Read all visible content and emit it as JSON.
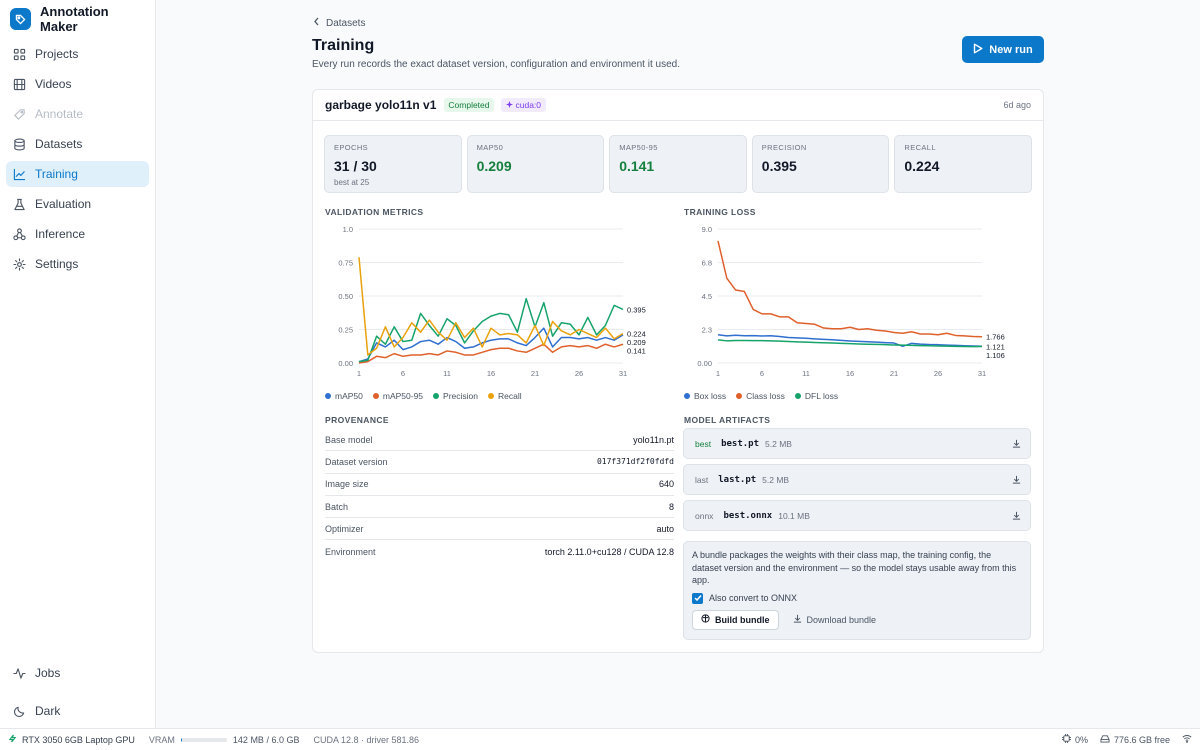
{
  "app": {
    "name": "Annotation Maker"
  },
  "sidebar": {
    "items": [
      {
        "label": "Projects",
        "icon": "grid-icon",
        "state": "normal"
      },
      {
        "label": "Videos",
        "icon": "film-icon",
        "state": "normal"
      },
      {
        "label": "Annotate",
        "icon": "tag-icon",
        "state": "disabled"
      },
      {
        "label": "Datasets",
        "icon": "database-icon",
        "state": "normal"
      },
      {
        "label": "Training",
        "icon": "chart-line-icon",
        "state": "active"
      },
      {
        "label": "Evaluation",
        "icon": "flask-icon",
        "state": "normal"
      },
      {
        "label": "Inference",
        "icon": "network-icon",
        "state": "normal"
      },
      {
        "label": "Settings",
        "icon": "gear-icon",
        "state": "normal"
      }
    ],
    "bottom": [
      {
        "label": "Jobs",
        "icon": "activity-icon"
      },
      {
        "label": "Dark",
        "icon": "moon-icon"
      }
    ]
  },
  "header": {
    "breadcrumb": "Datasets",
    "title": "Training",
    "subtitle": "Every run records the exact dataset version, configuration and environment it used.",
    "new_run": "New run"
  },
  "run": {
    "name": "garbage yolo11n v1",
    "status": "Completed",
    "device": "cuda:0",
    "age": "6d ago",
    "stats": [
      {
        "label": "EPOCHS",
        "value": "31 / 30",
        "sub": "best at 25",
        "accent": false
      },
      {
        "label": "MAP50",
        "value": "0.209",
        "sub": "",
        "accent": true
      },
      {
        "label": "MAP50-95",
        "value": "0.141",
        "sub": "",
        "accent": true
      },
      {
        "label": "PRECISION",
        "value": "0.395",
        "sub": "",
        "accent": false
      },
      {
        "label": "RECALL",
        "value": "0.224",
        "sub": "",
        "accent": false
      }
    ]
  },
  "sections": {
    "validation": "VALIDATION METRICS",
    "training_loss": "TRAINING LOSS",
    "provenance": "PROVENANCE",
    "artifacts": "MODEL ARTIFACTS"
  },
  "chart_data": [
    {
      "type": "line",
      "title": "VALIDATION METRICS",
      "xlim": [
        1,
        31
      ],
      "x_ticks": [
        "1",
        "6",
        "11",
        "16",
        "21",
        "26",
        "31"
      ],
      "ylim": [
        0,
        1
      ],
      "y_ticks": [
        "0.00",
        "0.25",
        "0.50",
        "0.75",
        "1.0"
      ],
      "grid": true,
      "legend": "bottom",
      "end_labels": [
        "0.395",
        "0.224",
        "0.209",
        "0.141"
      ],
      "series": [
        {
          "name": "mAP50",
          "color": "#2f6fcf",
          "values": [
            0.01,
            0.03,
            0.15,
            0.12,
            0.17,
            0.1,
            0.12,
            0.16,
            0.17,
            0.14,
            0.19,
            0.16,
            0.11,
            0.12,
            0.15,
            0.17,
            0.18,
            0.18,
            0.15,
            0.13,
            0.19,
            0.26,
            0.12,
            0.19,
            0.19,
            0.18,
            0.19,
            0.17,
            0.19,
            0.17,
            0.21
          ]
        },
        {
          "name": "mAP50-95",
          "color": "#e0602b",
          "values": [
            0.0,
            0.01,
            0.05,
            0.04,
            0.07,
            0.05,
            0.06,
            0.06,
            0.07,
            0.06,
            0.09,
            0.08,
            0.06,
            0.06,
            0.08,
            0.1,
            0.11,
            0.11,
            0.09,
            0.08,
            0.11,
            0.14,
            0.08,
            0.12,
            0.13,
            0.12,
            0.13,
            0.11,
            0.14,
            0.12,
            0.14
          ]
        },
        {
          "name": "Precision",
          "color": "#16a36b",
          "values": [
            0.01,
            0.02,
            0.2,
            0.14,
            0.27,
            0.16,
            0.17,
            0.37,
            0.28,
            0.2,
            0.33,
            0.28,
            0.15,
            0.24,
            0.31,
            0.35,
            0.37,
            0.36,
            0.23,
            0.48,
            0.27,
            0.45,
            0.2,
            0.3,
            0.29,
            0.21,
            0.34,
            0.21,
            0.28,
            0.43,
            0.4
          ]
        },
        {
          "name": "Recall",
          "color": "#e9a20d",
          "values": [
            0.79,
            0.06,
            0.11,
            0.27,
            0.12,
            0.19,
            0.3,
            0.23,
            0.32,
            0.23,
            0.17,
            0.3,
            0.19,
            0.26,
            0.12,
            0.26,
            0.21,
            0.22,
            0.21,
            0.15,
            0.28,
            0.13,
            0.31,
            0.24,
            0.21,
            0.25,
            0.22,
            0.19,
            0.26,
            0.18,
            0.22
          ]
        }
      ]
    },
    {
      "type": "line",
      "title": "TRAINING LOSS",
      "xlim": [
        1,
        31
      ],
      "x_ticks": [
        "1",
        "6",
        "11",
        "16",
        "21",
        "26",
        "31"
      ],
      "ylim": [
        0,
        9
      ],
      "y_ticks": [
        "0.00",
        "2.3",
        "4.5",
        "6.8",
        "9.0"
      ],
      "grid": true,
      "legend": "bottom",
      "end_labels": [
        "1.766",
        "1.121",
        "1.106"
      ],
      "series": [
        {
          "name": "Box loss",
          "color": "#2f6fcf",
          "values": [
            1.9,
            1.82,
            1.86,
            1.83,
            1.84,
            1.81,
            1.83,
            1.78,
            1.71,
            1.69,
            1.66,
            1.62,
            1.59,
            1.56,
            1.52,
            1.48,
            1.45,
            1.43,
            1.4,
            1.37,
            1.34,
            1.12,
            1.32,
            1.27,
            1.24,
            1.23,
            1.2,
            1.18,
            1.16,
            1.14,
            1.121
          ]
        },
        {
          "name": "Class loss",
          "color": "#e0602b",
          "values": [
            8.2,
            5.7,
            4.9,
            4.8,
            3.6,
            3.3,
            3.3,
            3.1,
            3.1,
            2.7,
            2.65,
            2.6,
            2.35,
            2.3,
            2.3,
            2.4,
            2.25,
            2.3,
            2.2,
            2.15,
            2.05,
            2.0,
            2.1,
            1.95,
            1.95,
            1.9,
            2.0,
            1.85,
            1.82,
            1.78,
            1.766
          ]
        },
        {
          "name": "DFL loss",
          "color": "#16a36b",
          "values": [
            1.55,
            1.49,
            1.51,
            1.51,
            1.5,
            1.5,
            1.49,
            1.47,
            1.44,
            1.42,
            1.4,
            1.38,
            1.36,
            1.34,
            1.32,
            1.3,
            1.28,
            1.26,
            1.25,
            1.23,
            1.21,
            1.2,
            1.18,
            1.17,
            1.16,
            1.14,
            1.13,
            1.12,
            1.11,
            1.1,
            1.106
          ]
        }
      ]
    }
  ],
  "provenance": [
    {
      "key": "Base model",
      "value": "yolo11n.pt",
      "mono": false
    },
    {
      "key": "Dataset version",
      "value": "017f371df2f0fdfd",
      "mono": true
    },
    {
      "key": "Image size",
      "value": "640",
      "mono": false
    },
    {
      "key": "Batch",
      "value": "8",
      "mono": false
    },
    {
      "key": "Optimizer",
      "value": "auto",
      "mono": false
    },
    {
      "key": "Environment",
      "value": "torch 2.11.0+cu128 / CUDA 12.8",
      "mono": false
    }
  ],
  "artifacts": [
    {
      "tag": "best",
      "file": "best.pt",
      "size": "5.2 MB"
    },
    {
      "tag": "last",
      "file": "last.pt",
      "size": "5.2 MB"
    },
    {
      "tag": "onnx",
      "file": "best.onnx",
      "size": "10.1 MB"
    }
  ],
  "bundle": {
    "text": "A bundle packages the weights with their class map, the training config, the dataset version and the environment — so the model stays usable away from this app.",
    "checkbox_label": "Also convert to ONNX",
    "checked": true,
    "build": "Build bundle",
    "download": "Download bundle"
  },
  "statusbar": {
    "gpu": "RTX 3050 6GB Laptop GPU",
    "vram_label": "VRAM",
    "vram_fraction": 0.024,
    "vram_value": "142 MB / 6.0 GB",
    "cuda": "CUDA 12.8 · driver 581.86",
    "cpu": "0%",
    "disk": "776.6 GB free"
  },
  "colors": {
    "accent": "#0b78c9",
    "success": "#15803d",
    "purple": "#7c3aed"
  }
}
